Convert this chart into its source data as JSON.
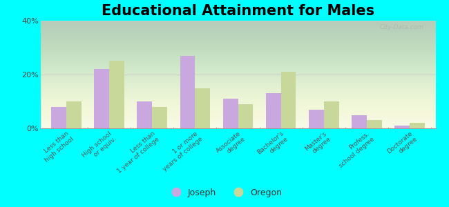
{
  "title": "Educational Attainment for Males",
  "categories": [
    "Less than\nhigh school",
    "High school\nor equiv.",
    "Less than\n1 year of college",
    "1 or more\nyears of college",
    "Associate\ndegree",
    "Bachelor's\ndegree",
    "Master's\ndegree",
    "Profess.\nschool degree",
    "Doctorate\ndegree"
  ],
  "joseph_values": [
    8,
    22,
    10,
    27,
    11,
    13,
    7,
    5,
    1
  ],
  "oregon_values": [
    10,
    25,
    8,
    15,
    9,
    21,
    10,
    3,
    2
  ],
  "joseph_color": "#c9a8e0",
  "oregon_color": "#c8d89a",
  "background_color": "#00ffff",
  "ylim": [
    0,
    40
  ],
  "yticks": [
    0,
    20,
    40
  ],
  "ytick_labels": [
    "0%",
    "20%",
    "40%"
  ],
  "legend_labels": [
    "Joseph",
    "Oregon"
  ],
  "title_fontsize": 15,
  "bar_width": 0.35
}
